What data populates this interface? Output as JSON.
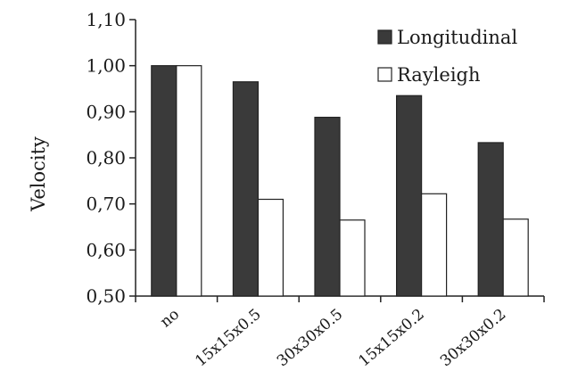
{
  "chart_data": {
    "type": "bar",
    "title": "",
    "xlabel": "",
    "ylabel": "Velocity",
    "categories": [
      "no",
      "15x15x0.5",
      "30x30x0.5",
      "15x15x0.2",
      "30x30x0.2"
    ],
    "series": [
      {
        "name": "Longitudinal",
        "values": [
          1.0,
          0.965,
          0.888,
          0.935,
          0.833
        ],
        "color": "#3a3a3a"
      },
      {
        "name": "Rayleigh",
        "values": [
          1.0,
          0.71,
          0.665,
          0.722,
          0.667
        ],
        "color": "#ffffff"
      }
    ],
    "ylim": [
      0.5,
      1.1
    ],
    "yticks": [
      "0,50",
      "0,60",
      "0,70",
      "0,80",
      "0,90",
      "1,00",
      "1,10"
    ],
    "grid": false,
    "legend_position": "top-right"
  }
}
